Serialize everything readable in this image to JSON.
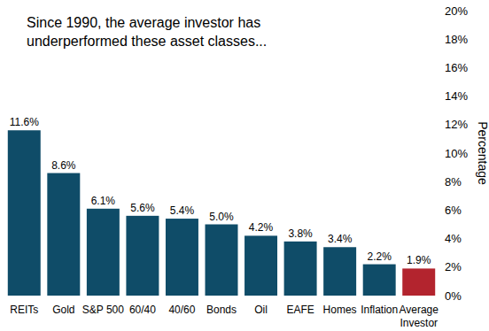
{
  "chart_data": {
    "type": "bar",
    "title": "Since 1990, the average investor has underperformed these asset classes...",
    "y_label": "Percentage",
    "categories": [
      "REITs",
      "Gold",
      "S&P 500",
      "60/40",
      "40/60",
      "Bonds",
      "Oil",
      "EAFE",
      "Homes",
      "Inflation",
      "Average Investor"
    ],
    "values": [
      11.6,
      8.6,
      6.1,
      5.6,
      5.4,
      5.0,
      4.2,
      3.8,
      3.4,
      2.2,
      1.9
    ],
    "value_labels": [
      "11.6%",
      "8.6%",
      "6.1%",
      "5.6%",
      "5.4%",
      "5.0%",
      "4.2%",
      "3.8%",
      "3.4%",
      "2.2%",
      "1.9%"
    ],
    "colors": [
      "#0f4c68",
      "#0f4c68",
      "#0f4c68",
      "#0f4c68",
      "#0f4c68",
      "#0f4c68",
      "#0f4c68",
      "#0f4c68",
      "#0f4c68",
      "#0f4c68",
      "#b3242e"
    ],
    "ylim": [
      0,
      20
    ],
    "yticks": [
      {
        "value": 0,
        "label": "0%"
      },
      {
        "value": 2,
        "label": "2%"
      },
      {
        "value": 4,
        "label": "4%"
      },
      {
        "value": 6,
        "label": "6%"
      },
      {
        "value": 8,
        "label": "8%"
      },
      {
        "value": 10,
        "label": "10%"
      },
      {
        "value": 12,
        "label": "12%"
      },
      {
        "value": 14,
        "label": "14%"
      },
      {
        "value": 16,
        "label": "16%"
      },
      {
        "value": 18,
        "label": "18%"
      },
      {
        "value": 20,
        "label": "20%"
      }
    ],
    "grid": false,
    "data_labels": true
  }
}
